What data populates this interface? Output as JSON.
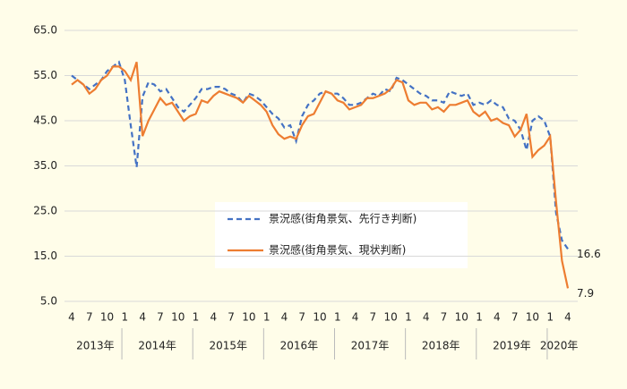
{
  "chart_data": {
    "type": "line",
    "categories": [
      "4",
      null,
      null,
      "7",
      null,
      null,
      "10",
      null,
      null,
      "1",
      null,
      null,
      "4",
      null,
      null,
      "7",
      null,
      null,
      "10",
      null,
      null,
      "1",
      null,
      null,
      "4",
      null,
      null,
      "7",
      null,
      null,
      "10",
      null,
      null,
      "1",
      null,
      null,
      "4",
      null,
      null,
      "7",
      null,
      null,
      "10",
      null,
      null,
      "1",
      null,
      null,
      "4",
      null,
      null,
      "7",
      null,
      null,
      "10",
      null,
      null,
      "1",
      null,
      null,
      "4",
      null,
      null,
      "7",
      null,
      null,
      "10",
      null,
      null,
      "1",
      null,
      null,
      "4",
      null,
      null,
      "7",
      null,
      null,
      "10",
      null,
      null,
      "1",
      null,
      null,
      "4"
    ],
    "year_labels": [
      "2013年",
      "2014年",
      "2015年",
      "2016年",
      "2017年",
      "2018年",
      "2019年",
      "2020年"
    ],
    "series": [
      {
        "name": "景況感(街角景気、先行き判断)",
        "color": "#4472c4",
        "dashed": true,
        "values": [
          55,
          54,
          53,
          52,
          53,
          54,
          56,
          57,
          58,
          54,
          44,
          34.7,
          50.3,
          53.5,
          53,
          51.5,
          52,
          50,
          48,
          47,
          48.5,
          50,
          52,
          52,
          52.5,
          52.5,
          52,
          51,
          50.5,
          49,
          51,
          50.5,
          49.5,
          48,
          46.5,
          45.5,
          43.5,
          44,
          40.5,
          46,
          48.5,
          49.5,
          51,
          51.5,
          51,
          51,
          50,
          48.5,
          48.5,
          49,
          50,
          51,
          50.5,
          52,
          51.5,
          54.5,
          54,
          53,
          52,
          51,
          50.5,
          49.5,
          49.5,
          49,
          51.5,
          51,
          50.5,
          51,
          48.5,
          49,
          48.5,
          49.5,
          48.5,
          48,
          45.5,
          45,
          43,
          38.5,
          45,
          46,
          45,
          41.5,
          24.6,
          18.5,
          16.6
        ],
        "value_labels": [
          null,
          null,
          null,
          null,
          null,
          null,
          null,
          null,
          null,
          null,
          null,
          null,
          null,
          null,
          null,
          null,
          null,
          null,
          null,
          null,
          null,
          null,
          null,
          null,
          null,
          null,
          null,
          null,
          null,
          null,
          null,
          null,
          null,
          null,
          null,
          null,
          null,
          null,
          null,
          null,
          null,
          null,
          null,
          null,
          null,
          null,
          null,
          null,
          null,
          null,
          null,
          null,
          null,
          null,
          null,
          null,
          null,
          null,
          null,
          null,
          null,
          null,
          null,
          null,
          null,
          null,
          null,
          null,
          null,
          null,
          null,
          null,
          null,
          null,
          null,
          null,
          null,
          null,
          null,
          null,
          null,
          null,
          null,
          null,
          "16.6"
        ]
      },
      {
        "name": "景況感(街角景気、現状判断)",
        "color": "#ed7d31",
        "dashed": false,
        "values": [
          53,
          54,
          53,
          51,
          52,
          54,
          55,
          57,
          57,
          56,
          54,
          58,
          41.6,
          45,
          47.5,
          50,
          48.5,
          49,
          47,
          45,
          46,
          46.5,
          49.5,
          49,
          50.5,
          51.5,
          51,
          50.5,
          50,
          49,
          50.5,
          49.5,
          48.5,
          47,
          44,
          42,
          41,
          41.5,
          41,
          44,
          46,
          46.5,
          49,
          51.5,
          51,
          49.5,
          49,
          47.5,
          48,
          48.5,
          50,
          50,
          50.5,
          51,
          52,
          54,
          53.5,
          49.5,
          48.5,
          49,
          49,
          47.5,
          48,
          47,
          48.5,
          48.5,
          49,
          49.5,
          47,
          46,
          47,
          45,
          45.5,
          44.5,
          44,
          41.5,
          43,
          46.5,
          37,
          38.5,
          39.5,
          41.5,
          27,
          14,
          7.9
        ],
        "value_labels": [
          null,
          null,
          null,
          null,
          null,
          null,
          null,
          null,
          null,
          null,
          null,
          null,
          null,
          null,
          null,
          null,
          null,
          null,
          null,
          null,
          null,
          null,
          null,
          null,
          null,
          null,
          null,
          null,
          null,
          null,
          null,
          null,
          null,
          null,
          null,
          null,
          null,
          null,
          null,
          null,
          null,
          null,
          null,
          null,
          null,
          null,
          null,
          null,
          null,
          null,
          null,
          null,
          null,
          null,
          null,
          null,
          null,
          null,
          null,
          null,
          null,
          null,
          null,
          null,
          null,
          null,
          null,
          null,
          null,
          null,
          null,
          null,
          null,
          null,
          null,
          null,
          null,
          null,
          null,
          null,
          null,
          null,
          null,
          null,
          "7.9"
        ]
      }
    ],
    "ylim": [
      5,
      65
    ],
    "yticks": [
      {
        "value": 5,
        "label": "5.0"
      },
      {
        "value": 15,
        "label": "15.0"
      },
      {
        "value": 25,
        "label": "25.0"
      },
      {
        "value": 35,
        "label": "35.0"
      },
      {
        "value": 45,
        "label": "45.0"
      },
      {
        "value": 55,
        "label": "55.0"
      },
      {
        "value": 65,
        "label": "65.0"
      }
    ],
    "grid": true
  }
}
